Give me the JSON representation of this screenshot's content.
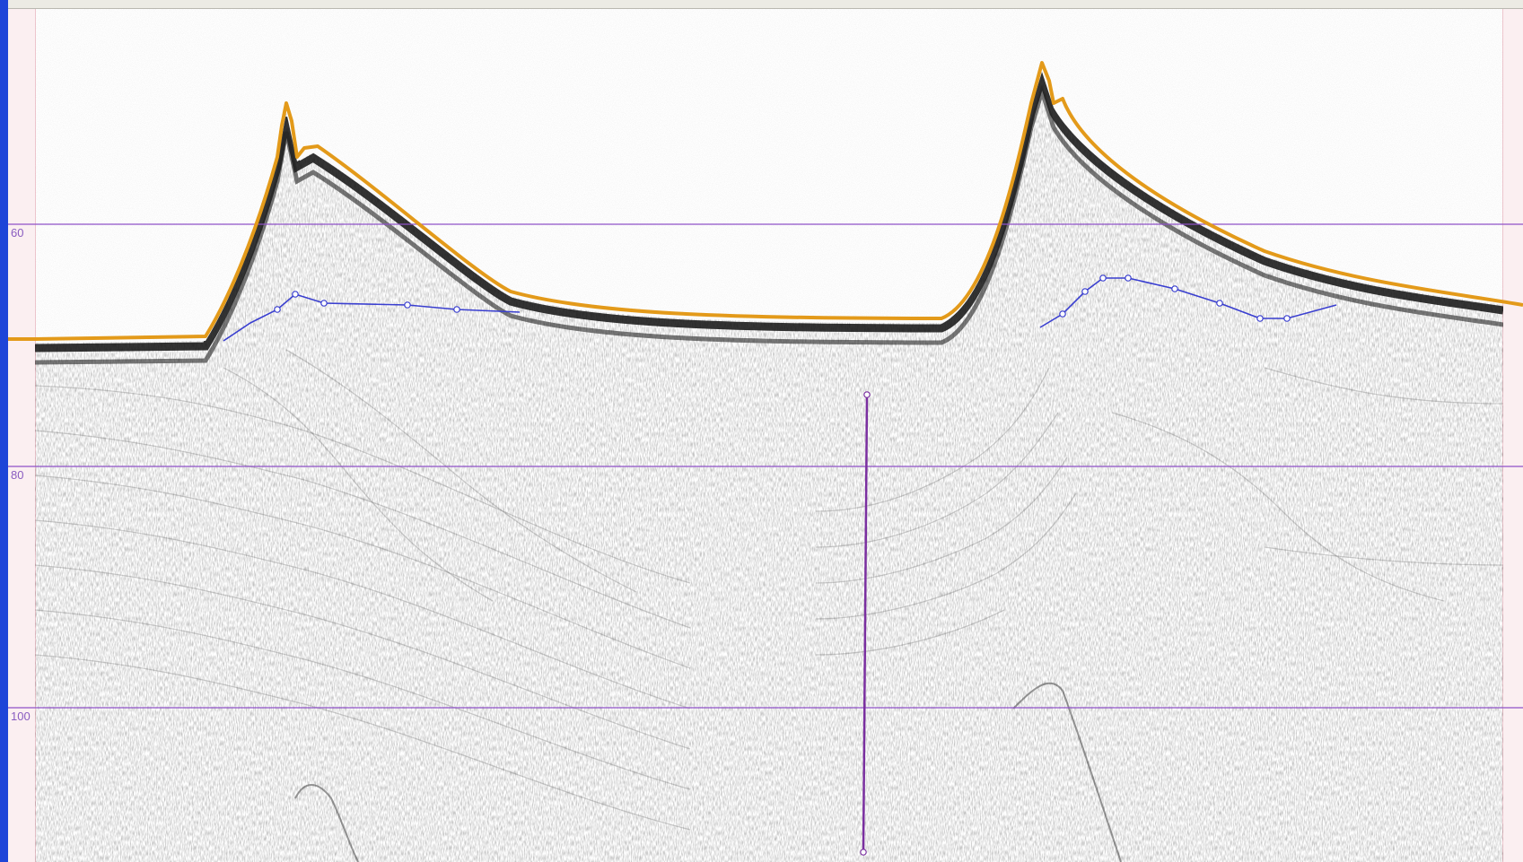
{
  "app": {
    "depth_labels": [
      "60",
      "80",
      "100"
    ]
  },
  "colors": {
    "bottom_line": "#e39a1a",
    "interpolated_layer": "#3a3fd0",
    "grid_line": "#8f52c8",
    "marker_line": "#7a2fa0",
    "window_edge": "#1e45d8"
  },
  "icons": {
    "layer_vertex": "circle-handle-icon"
  }
}
